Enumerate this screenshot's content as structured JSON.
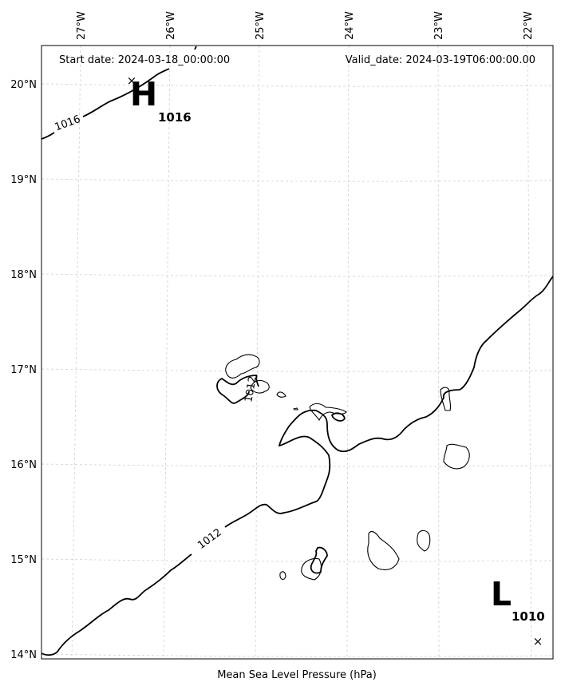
{
  "header": {
    "start_date": "Start date: 2024-03-18_00:00:00",
    "valid_date": "Valid_date: 2024-03-19T06:00:00.00"
  },
  "footer": {
    "xlabel": "Mean Sea Level Pressure (hPa)"
  },
  "axes": {
    "lon_ticks": [
      "27°W",
      "26°W",
      "25°W",
      "24°W",
      "23°W",
      "22°W"
    ],
    "lat_ticks": [
      "20°N",
      "19°N",
      "18°N",
      "17°N",
      "16°N",
      "15°N",
      "14°N"
    ]
  },
  "contours": [
    {
      "label": "1016"
    },
    {
      "label": "1012"
    },
    {
      "label": "1012"
    }
  ],
  "centers": {
    "high": {
      "symbol": "H",
      "value": "1016",
      "marker": "×"
    },
    "low": {
      "symbol": "L",
      "value": "1010",
      "marker": "×"
    }
  },
  "colors": {
    "lines": "#000000",
    "grid": "#cfcfcf",
    "land_fill": "#ffffff"
  }
}
